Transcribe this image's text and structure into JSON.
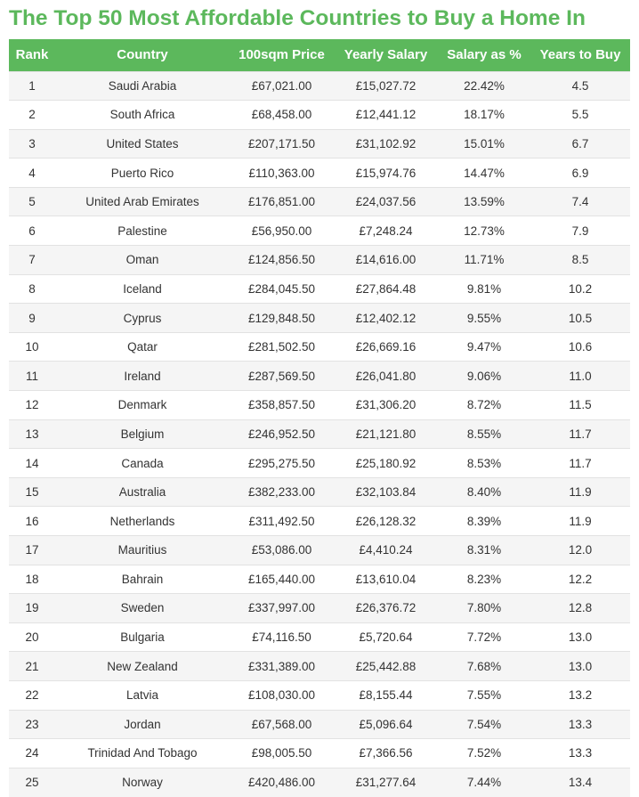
{
  "title": "The Top 50 Most Affordable Countries to Buy a Home In",
  "headers": [
    "Rank",
    "Country",
    "100sqm Price",
    "Yearly Salary",
    "Salary as %",
    "Years to Buy"
  ],
  "rows": [
    [
      "1",
      "Saudi Arabia",
      "£67,021.00",
      "£15,027.72",
      "22.42%",
      "4.5"
    ],
    [
      "2",
      "South Africa",
      "£68,458.00",
      "£12,441.12",
      "18.17%",
      "5.5"
    ],
    [
      "3",
      "United States",
      "£207,171.50",
      "£31,102.92",
      "15.01%",
      "6.7"
    ],
    [
      "4",
      "Puerto Rico",
      "£110,363.00",
      "£15,974.76",
      "14.47%",
      "6.9"
    ],
    [
      "5",
      "United Arab Emirates",
      "£176,851.00",
      "£24,037.56",
      "13.59%",
      "7.4"
    ],
    [
      "6",
      "Palestine",
      "£56,950.00",
      "£7,248.24",
      "12.73%",
      "7.9"
    ],
    [
      "7",
      "Oman",
      "£124,856.50",
      "£14,616.00",
      "11.71%",
      "8.5"
    ],
    [
      "8",
      "Iceland",
      "£284,045.50",
      "£27,864.48",
      "9.81%",
      "10.2"
    ],
    [
      "9",
      "Cyprus",
      "£129,848.50",
      "£12,402.12",
      "9.55%",
      "10.5"
    ],
    [
      "10",
      "Qatar",
      "£281,502.50",
      "£26,669.16",
      "9.47%",
      "10.6"
    ],
    [
      "11",
      "Ireland",
      "£287,569.50",
      "£26,041.80",
      "9.06%",
      "11.0"
    ],
    [
      "12",
      "Denmark",
      "£358,857.50",
      "£31,306.20",
      "8.72%",
      "11.5"
    ],
    [
      "13",
      "Belgium",
      "£246,952.50",
      "£21,121.80",
      "8.55%",
      "11.7"
    ],
    [
      "14",
      "Canada",
      "£295,275.50",
      "£25,180.92",
      "8.53%",
      "11.7"
    ],
    [
      "15",
      "Australia",
      "£382,233.00",
      "£32,103.84",
      "8.40%",
      "11.9"
    ],
    [
      "16",
      "Netherlands",
      "£311,492.50",
      "£26,128.32",
      "8.39%",
      "11.9"
    ],
    [
      "17",
      "Mauritius",
      "£53,086.00",
      "£4,410.24",
      "8.31%",
      "12.0"
    ],
    [
      "18",
      "Bahrain",
      "£165,440.00",
      "£13,610.04",
      "8.23%",
      "12.2"
    ],
    [
      "19",
      "Sweden",
      "£337,997.00",
      "£26,376.72",
      "7.80%",
      "12.8"
    ],
    [
      "20",
      "Bulgaria",
      "£74,116.50",
      "£5,720.64",
      "7.72%",
      "13.0"
    ],
    [
      "21",
      "New Zealand",
      "£331,389.00",
      "£25,442.88",
      "7.68%",
      "13.0"
    ],
    [
      "22",
      "Latvia",
      "£108,030.00",
      "£8,155.44",
      "7.55%",
      "13.2"
    ],
    [
      "23",
      "Jordan",
      "£67,568.00",
      "£5,096.64",
      "7.54%",
      "13.3"
    ],
    [
      "24",
      "Trinidad And Tobago",
      "£98,005.50",
      "£7,366.56",
      "7.52%",
      "13.3"
    ],
    [
      "25",
      "Norway",
      "£420,486.00",
      "£31,277.64",
      "7.44%",
      "13.4"
    ]
  ]
}
